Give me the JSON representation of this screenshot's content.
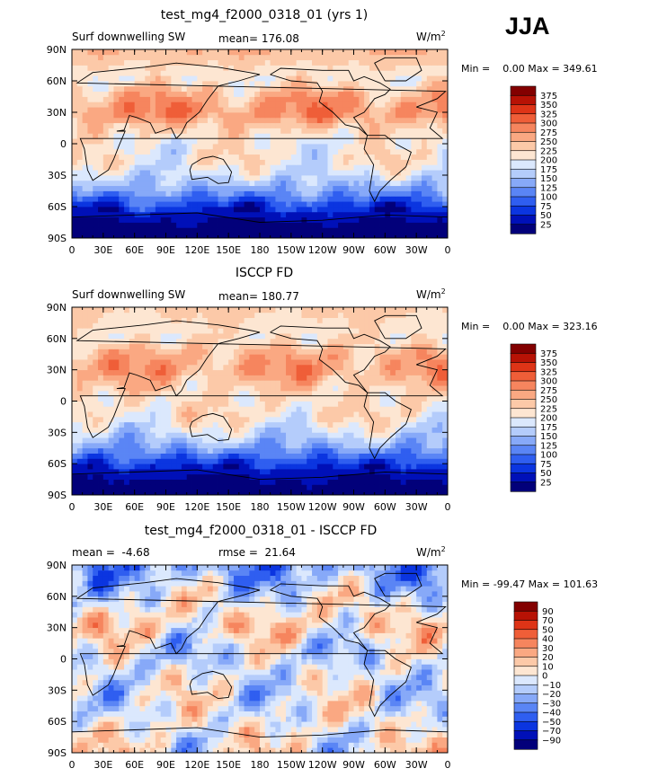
{
  "season": "JJA",
  "panels": [
    {
      "title": "test_mg4_f2000_0318_01 (yrs 1)",
      "left_label": "Surf downwelling SW",
      "mid_label": "mean= 176.08",
      "units": "W/m",
      "units_exp": "2",
      "minmax": "Min =    0.00 Max = 349.61",
      "colorbar_labels": [
        "375",
        "350",
        "325",
        "300",
        "275",
        "250",
        "225",
        "200",
        "175",
        "150",
        "125",
        "100",
        "75",
        "50",
        "25"
      ]
    },
    {
      "title": "ISCCP FD",
      "left_label": "Surf downwelling SW",
      "mid_label": "mean= 180.77",
      "units": "W/m",
      "units_exp": "2",
      "minmax": "Min =    0.00 Max = 323.16",
      "colorbar_labels": [
        "375",
        "350",
        "325",
        "300",
        "275",
        "250",
        "225",
        "200",
        "175",
        "150",
        "125",
        "100",
        "75",
        "50",
        "25"
      ]
    },
    {
      "title": "test_mg4_f2000_0318_01 - ISCCP FD",
      "left_label": "mean =  -4.68",
      "mid_label": "rmse =  21.64",
      "units": "W/m",
      "units_exp": "2",
      "minmax": "Min = -99.47 Max = 101.63",
      "colorbar_labels": [
        "90",
        "70",
        "50",
        "40",
        "30",
        "20",
        "10",
        "0",
        "−10",
        "−20",
        "−30",
        "−40",
        "−50",
        "−70",
        "−90"
      ]
    }
  ],
  "chart_data": [
    {
      "type": "heatmap",
      "title": "test_mg4_f2000_0318_01 (yrs 1)",
      "variable": "Surf downwelling SW",
      "units": "W/m^2",
      "mean": 176.08,
      "min": 0.0,
      "max": 349.61,
      "x_ticks": [
        "0",
        "30E",
        "60E",
        "90E",
        "120E",
        "150E",
        "180",
        "150W",
        "120W",
        "90W",
        "60W",
        "30W",
        "0"
      ],
      "y_ticks": [
        "90N",
        "60N",
        "30N",
        "0",
        "30S",
        "60S",
        "90S"
      ],
      "xlim": [
        0,
        360
      ],
      "ylim": [
        -90,
        90
      ],
      "levels": [
        25,
        50,
        75,
        100,
        125,
        150,
        175,
        200,
        225,
        250,
        275,
        300,
        325,
        350,
        375
      ],
      "colors": [
        "#02007a",
        "#0010b8",
        "#0b35e0",
        "#2f5ef0",
        "#5a85f5",
        "#87a9f8",
        "#b4ccfb",
        "#dbe8fd",
        "#fde6d2",
        "#fcc9a8",
        "#faa882",
        "#f6855e",
        "#ef5e38",
        "#de3417",
        "#b71205",
        "#830000"
      ],
      "zonal_profile": [
        [
          -90,
          5
        ],
        [
          -75,
          20
        ],
        [
          -60,
          60
        ],
        [
          -45,
          130
        ],
        [
          -30,
          180
        ],
        [
          -15,
          210
        ],
        [
          0,
          200
        ],
        [
          15,
          230
        ],
        [
          30,
          285
        ],
        [
          45,
          260
        ],
        [
          60,
          210
        ],
        [
          75,
          225
        ],
        [
          90,
          250
        ]
      ]
    },
    {
      "type": "heatmap",
      "title": "ISCCP FD",
      "variable": "Surf downwelling SW",
      "units": "W/m^2",
      "mean": 180.77,
      "min": 0.0,
      "max": 323.16,
      "x_ticks": [
        "0",
        "30E",
        "60E",
        "90E",
        "120E",
        "150E",
        "180",
        "150W",
        "120W",
        "90W",
        "60W",
        "30W",
        "0"
      ],
      "y_ticks": [
        "90N",
        "60N",
        "30N",
        "0",
        "30S",
        "60S",
        "90S"
      ],
      "xlim": [
        0,
        360
      ],
      "ylim": [
        -90,
        90
      ],
      "levels": [
        25,
        50,
        75,
        100,
        125,
        150,
        175,
        200,
        225,
        250,
        275,
        300,
        325,
        350,
        375
      ],
      "colors": [
        "#02007a",
        "#0010b8",
        "#0b35e0",
        "#2f5ef0",
        "#5a85f5",
        "#87a9f8",
        "#b4ccfb",
        "#dbe8fd",
        "#fde6d2",
        "#fcc9a8",
        "#faa882",
        "#f6855e",
        "#ef5e38",
        "#de3417",
        "#b71205",
        "#830000"
      ],
      "zonal_profile": [
        [
          -90,
          5
        ],
        [
          -75,
          20
        ],
        [
          -60,
          60
        ],
        [
          -45,
          130
        ],
        [
          -30,
          180
        ],
        [
          -15,
          215
        ],
        [
          0,
          215
        ],
        [
          15,
          235
        ],
        [
          30,
          270
        ],
        [
          45,
          255
        ],
        [
          60,
          215
        ],
        [
          75,
          220
        ],
        [
          90,
          235
        ]
      ]
    },
    {
      "type": "heatmap",
      "title": "test_mg4_f2000_0318_01 - ISCCP FD",
      "units": "W/m^2",
      "mean": -4.68,
      "rmse": 21.64,
      "min": -99.47,
      "max": 101.63,
      "x_ticks": [
        "0",
        "30E",
        "60E",
        "90E",
        "120E",
        "150E",
        "180",
        "150W",
        "120W",
        "90W",
        "60W",
        "30W",
        "0"
      ],
      "y_ticks": [
        "90N",
        "60N",
        "30N",
        "0",
        "30S",
        "60S",
        "90S"
      ],
      "xlim": [
        0,
        360
      ],
      "ylim": [
        -90,
        90
      ],
      "levels": [
        -90,
        -70,
        -50,
        -40,
        -30,
        -20,
        -10,
        0,
        10,
        20,
        30,
        40,
        50,
        70,
        90
      ],
      "colors": [
        "#02007a",
        "#0010b8",
        "#0b35e0",
        "#2f5ef0",
        "#5a85f5",
        "#87a9f8",
        "#b4ccfb",
        "#dbe8fd",
        "#fde6d2",
        "#fcc9a8",
        "#faa882",
        "#f6855e",
        "#ef5e38",
        "#de3417",
        "#b71205",
        "#830000"
      ],
      "zonal_profile": [
        [
          -90,
          0
        ],
        [
          -75,
          0
        ],
        [
          -60,
          0
        ],
        [
          -45,
          -3
        ],
        [
          -30,
          -5
        ],
        [
          -15,
          -5
        ],
        [
          0,
          -10
        ],
        [
          15,
          -5
        ],
        [
          30,
          10
        ],
        [
          45,
          5
        ],
        [
          60,
          -5
        ],
        [
          75,
          -20
        ],
        [
          90,
          -30
        ]
      ]
    }
  ]
}
